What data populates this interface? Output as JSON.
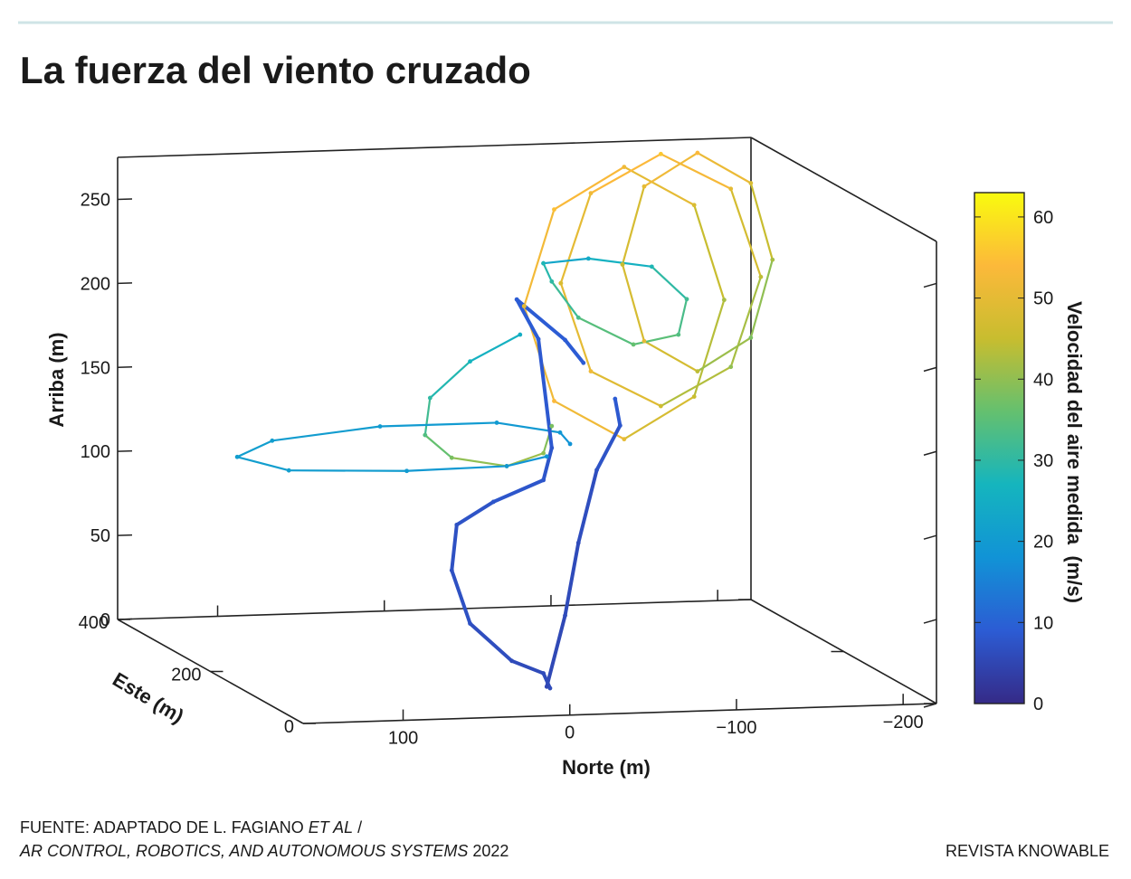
{
  "chart_data": {
    "type": "line3d",
    "title": "La fuerza del viento cruzado",
    "xlabel": "Norte (m)",
    "ylabel": "Este (m)",
    "zlabel": "Arriba (m)",
    "colorbar_label": "Velocidad del aire medida  (m/s)",
    "source": [
      [
        "FUENTE: ADAPTADO DE L. FAGIANO ",
        "ET AL",
        " /"
      ],
      [
        "AR CONTROL, ROBOTICS, AND AUTONOMOUS SYSTEMS",
        " 2022"
      ]
    ],
    "credit": "REVISTA KNOWABLE",
    "xlim": [
      160,
      -220
    ],
    "ylim": [
      0,
      400
    ],
    "zlim": [
      0,
      275
    ],
    "xticks": [
      100,
      0,
      {
        "value": -100,
        "label": "−100"
      },
      {
        "value": -200,
        "label": "−200"
      }
    ],
    "yticks": [
      0,
      200,
      400
    ],
    "zticks": [
      0,
      50,
      100,
      150,
      200,
      250
    ],
    "clim": [
      0,
      63
    ],
    "cticks": [
      0,
      10,
      20,
      30,
      40,
      50,
      60
    ],
    "colormap": [
      "#352a87",
      "#2c5cd4",
      "#1193d6",
      "#15b5be",
      "#64c06f",
      "#c8bd2f",
      "#fcb93a",
      "#f9fb0e"
    ],
    "x": [
      -70,
      -88,
      -130,
      -172,
      -190,
      -172,
      -130,
      -88,
      -70,
      null,
      -92,
      -110,
      -152,
      -194,
      -212,
      -194,
      -152,
      -110,
      -92,
      null,
      -129,
      -142,
      -174,
      -206,
      -219,
      -206,
      -174,
      -142,
      -129,
      null,
      -12,
      -39,
      -77,
      -98,
      -93,
      -66,
      -33,
      -17,
      -12,
      null,
      2,
      32,
      56,
      59,
      43,
      10,
      -12,
      -17,
      null,
      -14,
      10,
      70,
      99,
      130,
      109,
      86,
      16,
      -22,
      -28,
      null,
      -14,
      -25,
      -33,
      -44,
      -58,
      -55,
      null,
      -16,
      -12,
      7,
      32,
      43,
      40,
      18,
      -12,
      -17,
      -9,
      4,
      -25,
      -36
    ],
    "y": [
      350,
      350,
      350,
      350,
      350,
      350,
      350,
      350,
      350,
      null,
      350,
      350,
      350,
      350,
      350,
      350,
      350,
      350,
      350,
      null,
      350,
      350,
      350,
      350,
      350,
      350,
      350,
      350,
      350,
      null,
      100,
      100,
      100,
      100,
      100,
      100,
      100,
      100,
      100,
      null,
      100,
      100,
      100,
      100,
      100,
      100,
      100,
      100,
      null,
      100,
      100,
      100,
      250,
      250,
      250,
      100,
      100,
      100,
      100,
      null,
      100,
      100,
      100,
      100,
      100,
      100,
      null,
      100,
      100,
      100,
      100,
      100,
      100,
      100,
      100,
      100,
      100,
      100,
      100,
      100
    ],
    "z": [
      187,
      244,
      268,
      244,
      187,
      130,
      106,
      130,
      187,
      null,
      200,
      253,
      275,
      253,
      200,
      147,
      125,
      147,
      200,
      null,
      210,
      256,
      275,
      256,
      210,
      164,
      145,
      164,
      210,
      null,
      253,
      255,
      249,
      229,
      208,
      203,
      220,
      242,
      253,
      null,
      211,
      196,
      175,
      153,
      139,
      133,
      140,
      156,
      null,
      138,
      133,
      132,
      110,
      119,
      128,
      159,
      159,
      152,
      145,
      null,
      1,
      43,
      86,
      129,
      155,
      171,
      null,
      0,
      9,
      17,
      40,
      72,
      99,
      112,
      124,
      143,
      208,
      232,
      207,
      193
    ],
    "color_values": [
      50,
      55,
      52,
      48,
      42,
      45,
      50,
      54,
      50,
      null,
      48,
      52,
      56,
      50,
      44,
      40,
      46,
      52,
      48,
      null,
      45,
      50,
      54,
      48,
      42,
      38,
      44,
      50,
      45,
      null,
      22,
      24,
      28,
      32,
      34,
      36,
      33,
      30,
      28,
      null,
      25,
      27,
      30,
      34,
      38,
      42,
      40,
      38,
      null,
      18,
      19,
      20,
      21,
      21,
      21,
      20,
      20,
      19,
      18,
      null,
      5,
      6,
      6,
      7,
      8,
      9,
      null,
      6,
      6,
      6,
      7,
      7,
      7,
      8,
      8,
      8,
      9,
      9,
      9,
      9
    ]
  }
}
